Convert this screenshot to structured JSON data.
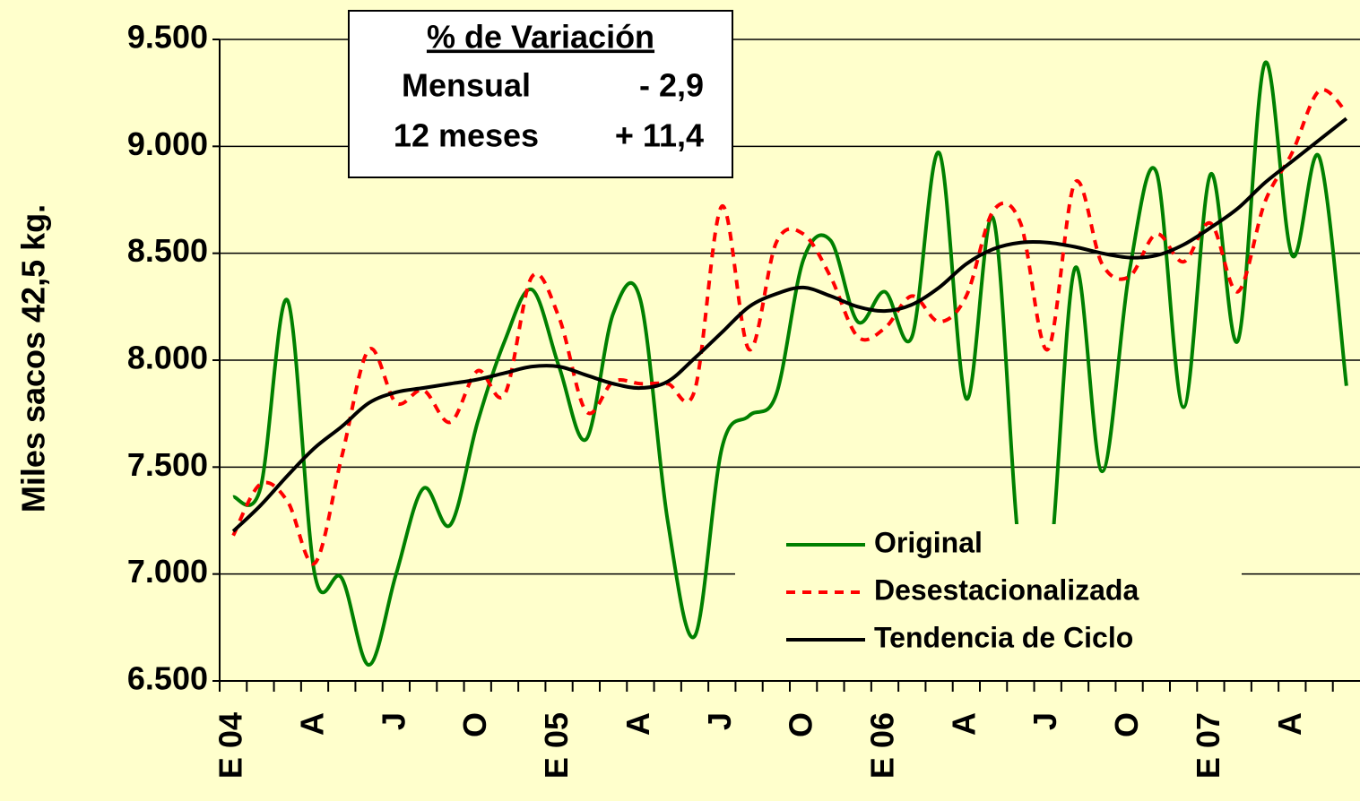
{
  "chart_data": {
    "type": "line",
    "y_label": "Miles sacos 42,5 kg.",
    "categories": [
      "E 04",
      null,
      null,
      "A",
      null,
      null,
      "J",
      null,
      null,
      "O",
      null,
      null,
      "E 05",
      null,
      null,
      "A",
      null,
      null,
      "J",
      null,
      null,
      "O",
      null,
      null,
      "E 06",
      null,
      null,
      "A",
      null,
      null,
      "J",
      null,
      null,
      "O",
      null,
      null,
      "E 07",
      null,
      null,
      "A",
      null,
      null
    ],
    "series": [
      {
        "name": "Original",
        "color": "#008000",
        "dash": false,
        "values": [
          7360,
          7400,
          8280,
          7000,
          6980,
          6575,
          7000,
          7400,
          7230,
          7710,
          8090,
          8330,
          7970,
          7630,
          8220,
          8280,
          7250,
          6710,
          7590,
          7740,
          7840,
          8470,
          8560,
          8180,
          8320,
          8110,
          8970,
          7820,
          8660,
          7060,
          6960,
          8430,
          7480,
          8410,
          8880,
          7780,
          8870,
          8090,
          9390,
          8490,
          8950,
          7880
        ]
      },
      {
        "name": "Desestacionalizada",
        "color": "#ff0000",
        "dash": true,
        "values": [
          7180,
          7420,
          7340,
          7050,
          7550,
          8050,
          7800,
          7860,
          7710,
          7950,
          7840,
          8390,
          8200,
          7760,
          7900,
          7890,
          7890,
          7860,
          8720,
          8050,
          8550,
          8590,
          8390,
          8110,
          8150,
          8300,
          8180,
          8300,
          8700,
          8640,
          8050,
          8830,
          8450,
          8390,
          8590,
          8460,
          8640,
          8320,
          8740,
          8970,
          9260,
          9160
        ]
      },
      {
        "name": "Tendencia de Ciclo",
        "color": "#000000",
        "dash": false,
        "values": [
          7200,
          7320,
          7460,
          7590,
          7690,
          7800,
          7850,
          7870,
          7890,
          7910,
          7940,
          7970,
          7970,
          7930,
          7890,
          7870,
          7900,
          8010,
          8130,
          8250,
          8310,
          8340,
          8300,
          8250,
          8230,
          8260,
          8340,
          8450,
          8520,
          8550,
          8550,
          8530,
          8500,
          8480,
          8490,
          8540,
          8620,
          8710,
          8830,
          8930,
          9030,
          9130
        ]
      }
    ],
    "ylim": [
      6500,
      9500
    ],
    "yticks": [
      {
        "value": 6500,
        "label": "6.500"
      },
      {
        "value": 7000,
        "label": "7.000"
      },
      {
        "value": 7500,
        "label": "7.500"
      },
      {
        "value": 8000,
        "label": "8.000"
      },
      {
        "value": 8500,
        "label": "8.500"
      },
      {
        "value": 9000,
        "label": "9.000"
      },
      {
        "value": 9500,
        "label": "9.500"
      }
    ],
    "grid": true,
    "annotation": {
      "title": "% de Variación",
      "rows": [
        {
          "label": "Mensual",
          "value": "- 2,9",
          "color": "#ff0000"
        },
        {
          "label": "12 meses",
          "value": "+ 11,4",
          "color": "#008000"
        }
      ]
    }
  }
}
